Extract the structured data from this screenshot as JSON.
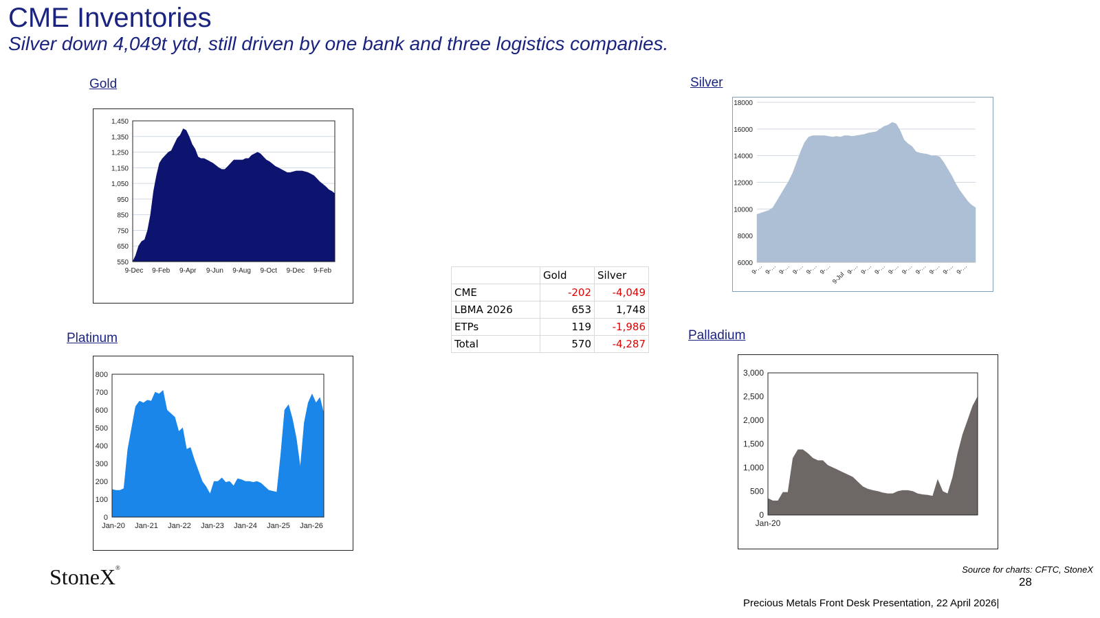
{
  "header": {
    "title": "CME Inventories",
    "subtitle": "Silver down 4,049t ytd, still driven by one bank and three logistics companies."
  },
  "labels": {
    "gold": "Gold",
    "silver": "Silver",
    "platinum": "Platinum",
    "palladium": "Palladium"
  },
  "watermark": "StoneX",
  "table": {
    "headers": [
      "",
      "Gold",
      "Silver"
    ],
    "rows": [
      {
        "label": "CME",
        "gold": "-202",
        "silver": "-4,049"
      },
      {
        "label": "LBMA 2026",
        "gold": "653",
        "silver": "1,748"
      },
      {
        "label": "ETPs",
        "gold": "119",
        "silver": "-1,986"
      },
      {
        "label": "Total",
        "gold": "570",
        "silver": "-4,287"
      }
    ]
  },
  "footer": {
    "logo": "StoneX",
    "source": "Source for charts: CFTC, StoneX",
    "page": "28",
    "presentation": "Precious Metals Front Desk Presentation, 22 April 2026|"
  },
  "colors": {
    "gold": "#0d1470",
    "silver": "#adbfd4",
    "platinum": "#1a86ea",
    "palladium": "#6d6866",
    "negative": "#e00000"
  },
  "chart_data": [
    {
      "id": "gold",
      "type": "area",
      "ylim": [
        550,
        1450
      ],
      "yticks": [
        "1,450",
        "1,350",
        "1,250",
        "1,150",
        "1,050",
        "950",
        "850",
        "750",
        "650",
        "550"
      ],
      "xticks": [
        "9-Dec",
        "9-Feb",
        "9-Apr",
        "9-Jun",
        "9-Aug",
        "9-Oct",
        "9-Dec",
        "9-Feb"
      ],
      "values": [
        550,
        590,
        650,
        680,
        690,
        750,
        850,
        1000,
        1100,
        1180,
        1210,
        1230,
        1250,
        1260,
        1300,
        1340,
        1360,
        1400,
        1390,
        1350,
        1300,
        1270,
        1220,
        1210,
        1210,
        1200,
        1190,
        1180,
        1165,
        1150,
        1140,
        1140,
        1160,
        1180,
        1200,
        1200,
        1200,
        1200,
        1210,
        1210,
        1230,
        1240,
        1250,
        1240,
        1220,
        1200,
        1190,
        1175,
        1160,
        1150,
        1140,
        1130,
        1120,
        1120,
        1125,
        1130,
        1130,
        1130,
        1125,
        1120,
        1110,
        1100,
        1080,
        1060,
        1045,
        1030,
        1010,
        1000,
        985
      ]
    },
    {
      "id": "silver",
      "type": "area",
      "ylim": [
        6000,
        18000
      ],
      "yticks": [
        "18000",
        "16000",
        "14000",
        "12000",
        "10000",
        "8000",
        "6000"
      ],
      "xticks": [
        "9-…",
        "9-…",
        "9-…",
        "9-…",
        "9-…",
        "9-…",
        "9-Jul",
        "9-…",
        "9-…",
        "9-…",
        "9-…",
        "9-…",
        "9-…",
        "9-…",
        "9-…",
        "9-…"
      ],
      "values": [
        9600,
        9700,
        9800,
        9900,
        10100,
        10600,
        11100,
        11600,
        12100,
        12700,
        13500,
        14300,
        15000,
        15400,
        15500,
        15500,
        15500,
        15500,
        15450,
        15400,
        15450,
        15400,
        15500,
        15500,
        15450,
        15500,
        15550,
        15600,
        15700,
        15750,
        15800,
        16000,
        16200,
        16300,
        16500,
        16400,
        15900,
        15200,
        14900,
        14700,
        14300,
        14200,
        14150,
        14100,
        14000,
        14000,
        13900,
        13500,
        13000,
        12500,
        11900,
        11400,
        11000,
        10600,
        10300,
        10100
      ]
    },
    {
      "id": "platinum",
      "type": "area",
      "ylim": [
        0,
        800
      ],
      "yticks": [
        "800",
        "700",
        "600",
        "500",
        "400",
        "300",
        "200",
        "100",
        "0"
      ],
      "xticks": [
        "Jan-20",
        "Jan-21",
        "Jan-22",
        "Jan-23",
        "Jan-24",
        "Jan-25",
        "Jan-26"
      ],
      "values": [
        155,
        150,
        150,
        160,
        380,
        500,
        620,
        650,
        640,
        655,
        650,
        700,
        690,
        710,
        600,
        580,
        560,
        480,
        500,
        380,
        390,
        320,
        260,
        200,
        170,
        130,
        200,
        200,
        220,
        195,
        200,
        175,
        215,
        210,
        200,
        200,
        195,
        200,
        190,
        170,
        150,
        145,
        140,
        350,
        600,
        630,
        550,
        440,
        280,
        530,
        640,
        690,
        640,
        670,
        580
      ]
    },
    {
      "id": "palladium",
      "type": "area",
      "ylim": [
        0,
        3000
      ],
      "yticks": [
        "3,000",
        "2,500",
        "2,000",
        "1,500",
        "1,000",
        "500",
        "0"
      ],
      "xticks": [
        "Jan-20"
      ],
      "values": [
        350,
        300,
        300,
        480,
        480,
        1200,
        1380,
        1380,
        1300,
        1200,
        1150,
        1150,
        1050,
        1000,
        950,
        900,
        850,
        800,
        700,
        600,
        550,
        520,
        500,
        470,
        450,
        450,
        500,
        520,
        520,
        500,
        450,
        430,
        420,
        400,
        750,
        500,
        450,
        800,
        1300,
        1700,
        2000,
        2300,
        2500
      ]
    }
  ]
}
